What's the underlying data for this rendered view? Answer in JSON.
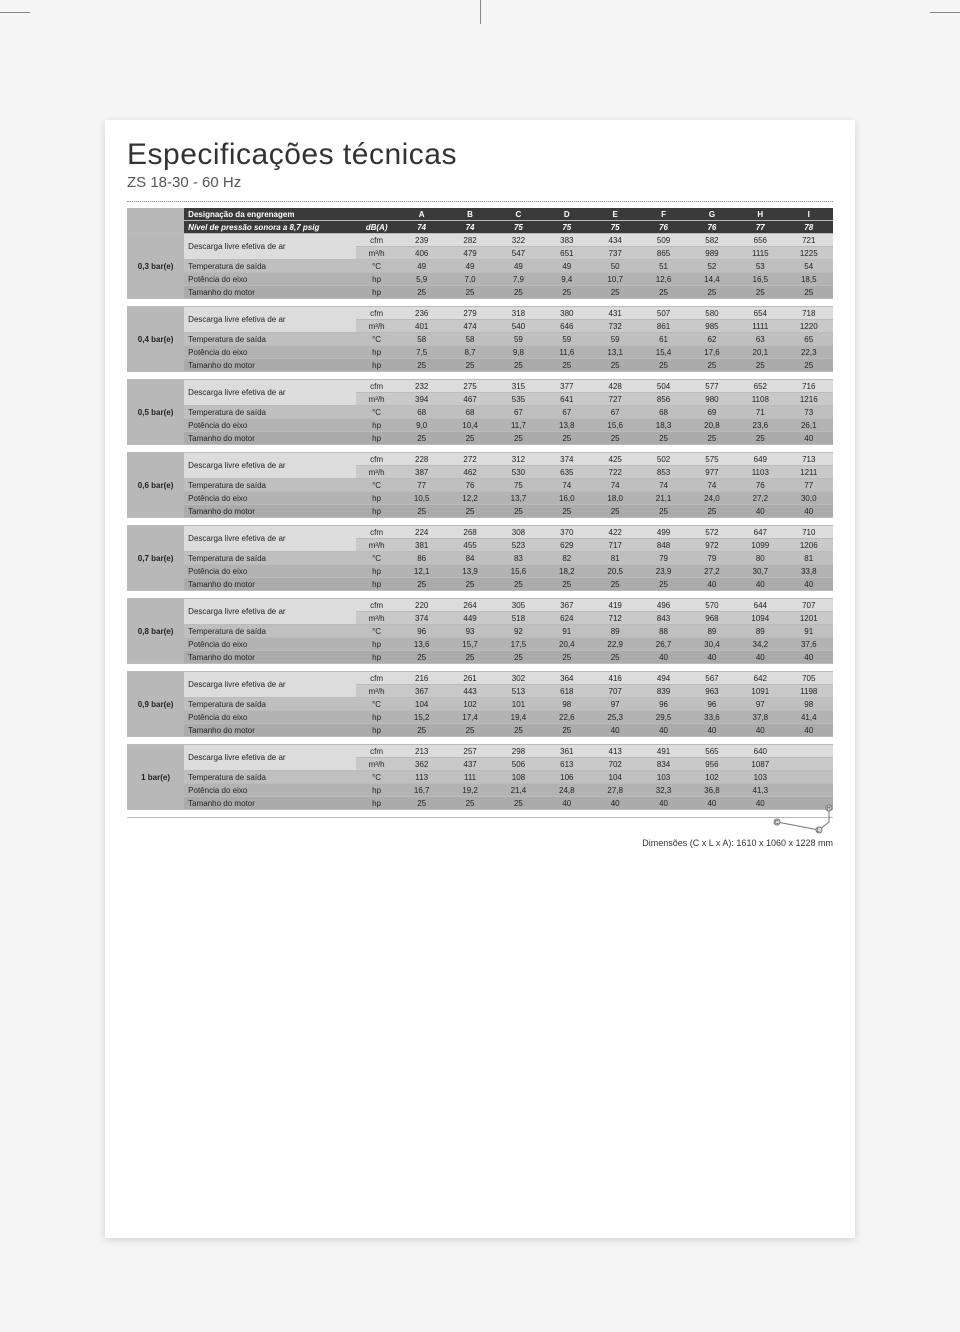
{
  "title": "Especificações técnicas",
  "subtitle": "ZS 18-30 - 60 Hz",
  "dimensions_label": "Dimensões (C x L x A): 1610 x 1060 x 1228 mm",
  "header": {
    "row1_label": "Designação da engrenagem",
    "row1_unit": "",
    "row2_label": "Nível de pressão sonora a 8,7 psig",
    "row2_unit": "dB(A)",
    "cols": [
      "A",
      "B",
      "C",
      "D",
      "E",
      "F",
      "G",
      "H",
      "I"
    ],
    "db": [
      "74",
      "74",
      "75",
      "75",
      "75",
      "76",
      "76",
      "77",
      "78"
    ]
  },
  "row_labels": {
    "discharge": "Descarga livre efetiva de ar",
    "temp": "Temperatura de saída",
    "shaft": "Potência do eixo",
    "motor": "Tamanho do motor"
  },
  "units": {
    "cfm": "cfm",
    "m3h": "m³/h",
    "c": "°C",
    "hp": "hp"
  },
  "groups": [
    {
      "name": "0,3 bar(e)",
      "cfm": [
        "239",
        "282",
        "322",
        "383",
        "434",
        "509",
        "582",
        "656",
        "721"
      ],
      "m3h": [
        "406",
        "479",
        "547",
        "651",
        "737",
        "865",
        "989",
        "1115",
        "1225"
      ],
      "temp": [
        "49",
        "49",
        "49",
        "49",
        "50",
        "51",
        "52",
        "53",
        "54"
      ],
      "shaft": [
        "5,9",
        "7,0",
        "7,9",
        "9,4",
        "10,7",
        "12,6",
        "14,4",
        "16,5",
        "18,5"
      ],
      "motor": [
        "25",
        "25",
        "25",
        "25",
        "25",
        "25",
        "25",
        "25",
        "25"
      ]
    },
    {
      "name": "0,4 bar(e)",
      "cfm": [
        "236",
        "279",
        "318",
        "380",
        "431",
        "507",
        "580",
        "654",
        "718"
      ],
      "m3h": [
        "401",
        "474",
        "540",
        "646",
        "732",
        "861",
        "985",
        "1111",
        "1220"
      ],
      "temp": [
        "58",
        "58",
        "59",
        "59",
        "59",
        "61",
        "62",
        "63",
        "65"
      ],
      "shaft": [
        "7,5",
        "8,7",
        "9,8",
        "11,6",
        "13,1",
        "15,4",
        "17,6",
        "20,1",
        "22,3"
      ],
      "motor": [
        "25",
        "25",
        "25",
        "25",
        "25",
        "25",
        "25",
        "25",
        "25"
      ]
    },
    {
      "name": "0,5 bar(e)",
      "cfm": [
        "232",
        "275",
        "315",
        "377",
        "428",
        "504",
        "577",
        "652",
        "716"
      ],
      "m3h": [
        "394",
        "467",
        "535",
        "641",
        "727",
        "856",
        "980",
        "1108",
        "1216"
      ],
      "temp": [
        "68",
        "68",
        "67",
        "67",
        "67",
        "68",
        "69",
        "71",
        "73"
      ],
      "shaft": [
        "9,0",
        "10,4",
        "11,7",
        "13,8",
        "15,6",
        "18,3",
        "20,8",
        "23,6",
        "26,1"
      ],
      "motor": [
        "25",
        "25",
        "25",
        "25",
        "25",
        "25",
        "25",
        "25",
        "40"
      ]
    },
    {
      "name": "0,6 bar(e)",
      "cfm": [
        "228",
        "272",
        "312",
        "374",
        "425",
        "502",
        "575",
        "649",
        "713"
      ],
      "m3h": [
        "387",
        "462",
        "530",
        "635",
        "722",
        "853",
        "977",
        "1103",
        "1211"
      ],
      "temp": [
        "77",
        "76",
        "75",
        "74",
        "74",
        "74",
        "74",
        "76",
        "77"
      ],
      "shaft": [
        "10,5",
        "12,2",
        "13,7",
        "16,0",
        "18,0",
        "21,1",
        "24,0",
        "27,2",
        "30,0"
      ],
      "motor": [
        "25",
        "25",
        "25",
        "25",
        "25",
        "25",
        "25",
        "40",
        "40"
      ]
    },
    {
      "name": "0,7 bar(e)",
      "cfm": [
        "224",
        "268",
        "308",
        "370",
        "422",
        "499",
        "572",
        "647",
        "710"
      ],
      "m3h": [
        "381",
        "455",
        "523",
        "629",
        "717",
        "848",
        "972",
        "1099",
        "1206"
      ],
      "temp": [
        "86",
        "84",
        "83",
        "82",
        "81",
        "79",
        "79",
        "80",
        "81"
      ],
      "shaft": [
        "12,1",
        "13,9",
        "15,6",
        "18,2",
        "20,5",
        "23,9",
        "27,2",
        "30,7",
        "33,8"
      ],
      "motor": [
        "25",
        "25",
        "25",
        "25",
        "25",
        "25",
        "40",
        "40",
        "40"
      ]
    },
    {
      "name": "0,8 bar(e)",
      "cfm": [
        "220",
        "264",
        "305",
        "367",
        "419",
        "496",
        "570",
        "644",
        "707"
      ],
      "m3h": [
        "374",
        "449",
        "518",
        "624",
        "712",
        "843",
        "968",
        "1094",
        "1201"
      ],
      "temp": [
        "96",
        "93",
        "92",
        "91",
        "89",
        "88",
        "89",
        "89",
        "91"
      ],
      "shaft": [
        "13,6",
        "15,7",
        "17,5",
        "20,4",
        "22,9",
        "26,7",
        "30,4",
        "34,2",
        "37,6"
      ],
      "motor": [
        "25",
        "25",
        "25",
        "25",
        "25",
        "40",
        "40",
        "40",
        "40"
      ]
    },
    {
      "name": "0,9 bar(e)",
      "cfm": [
        "216",
        "261",
        "302",
        "364",
        "416",
        "494",
        "567",
        "642",
        "705"
      ],
      "m3h": [
        "367",
        "443",
        "513",
        "618",
        "707",
        "839",
        "963",
        "1091",
        "1198"
      ],
      "temp": [
        "104",
        "102",
        "101",
        "98",
        "97",
        "96",
        "96",
        "97",
        "98"
      ],
      "shaft": [
        "15,2",
        "17,4",
        "19,4",
        "22,6",
        "25,3",
        "29,5",
        "33,6",
        "37,8",
        "41,4"
      ],
      "motor": [
        "25",
        "25",
        "25",
        "25",
        "40",
        "40",
        "40",
        "40",
        "40"
      ]
    },
    {
      "name": "1 bar(e)",
      "cfm": [
        "213",
        "257",
        "298",
        "361",
        "413",
        "491",
        "565",
        "640",
        ""
      ],
      "m3h": [
        "362",
        "437",
        "506",
        "613",
        "702",
        "834",
        "956",
        "1087",
        ""
      ],
      "temp": [
        "113",
        "111",
        "108",
        "106",
        "104",
        "103",
        "102",
        "103",
        ""
      ],
      "shaft": [
        "16,7",
        "19,2",
        "21,4",
        "24,8",
        "27,8",
        "32,3",
        "36,8",
        "41,3",
        ""
      ],
      "motor": [
        "25",
        "25",
        "25",
        "40",
        "40",
        "40",
        "40",
        "40",
        ""
      ]
    }
  ],
  "style": {
    "header_bg": "#3a3a3a",
    "header_fg": "#ffffff",
    "row_shades": [
      "#dcdcdc",
      "#c9c9c9",
      "#bfbfbf",
      "#b3b3b3",
      "#ababab"
    ],
    "group_bg": "#b8b8b8",
    "font_size_pt": 8,
    "title_size_pt": 30
  }
}
